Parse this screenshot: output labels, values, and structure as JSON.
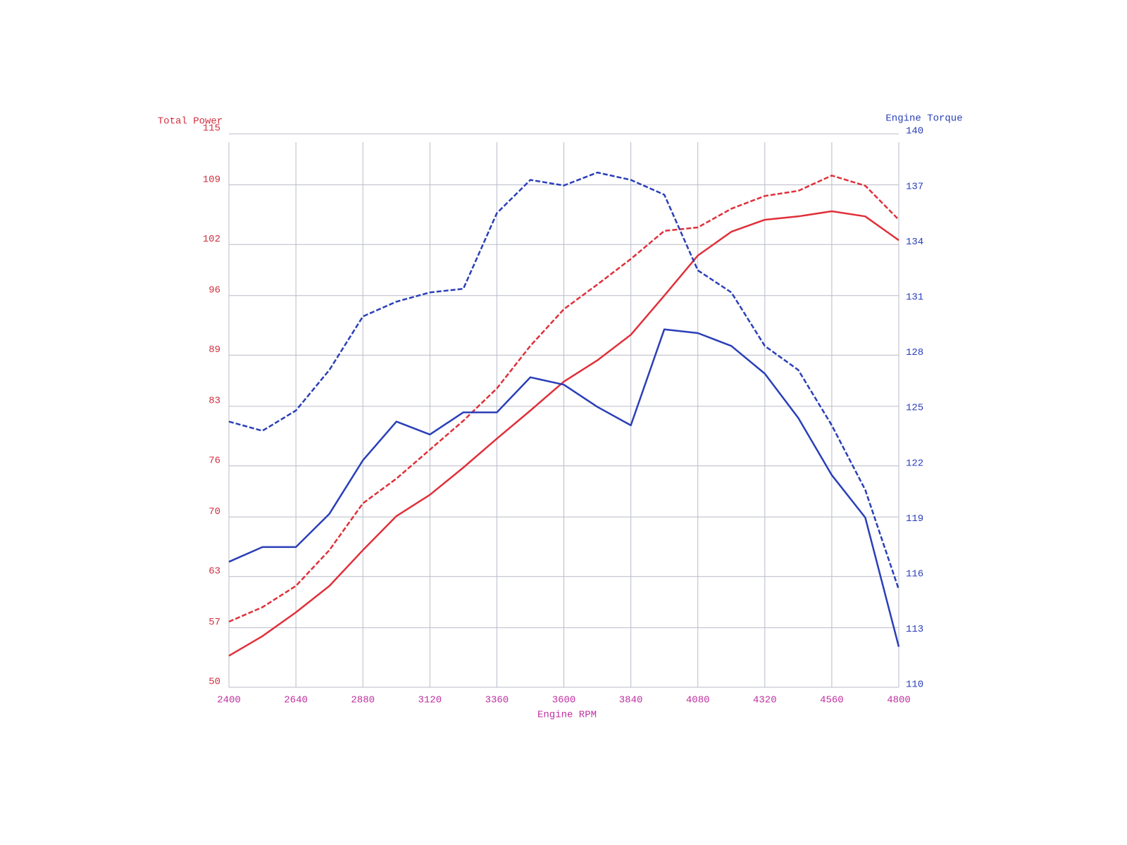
{
  "chart_data": {
    "type": "line",
    "x_label": "Engine RPM",
    "y_label": "Total Power",
    "y2_label": "Engine Torque",
    "x": [
      2400,
      2520,
      2640,
      2760,
      2880,
      3000,
      3120,
      3240,
      3360,
      3480,
      3600,
      3720,
      3840,
      3960,
      4080,
      4200,
      4320,
      4440,
      4560,
      4680,
      4800
    ],
    "xlim": [
      2400,
      4800
    ],
    "xticks": [
      2400,
      2640,
      2880,
      3120,
      3360,
      3600,
      3840,
      4080,
      4320,
      4560,
      4800
    ],
    "ylim": [
      50,
      115
    ],
    "yticks": [
      50,
      57,
      63,
      70,
      76,
      83,
      89,
      96,
      102,
      109,
      115
    ],
    "y2lim": [
      110,
      140
    ],
    "y2ticks": [
      110,
      113,
      116,
      119,
      122,
      125,
      128,
      131,
      134,
      137,
      140
    ],
    "grid": true,
    "series": [
      {
        "color": "#e0303a",
        "dash": false,
        "axis": "y",
        "values": [
          53.7,
          56.0,
          58.8,
          61.9,
          66.1,
          70.1,
          72.6,
          75.8,
          79.2,
          82.5,
          85.9,
          88.4,
          91.4,
          96.0,
          100.7,
          103.5,
          104.9,
          105.3,
          105.9,
          105.3,
          102.5
        ]
      },
      {
        "color": "#e0303a",
        "dash": true,
        "axis": "y",
        "values": [
          57.7,
          59.4,
          61.9,
          66.1,
          71.6,
          74.5,
          77.9,
          81.3,
          85.1,
          90.1,
          94.4,
          97.3,
          100.3,
          103.6,
          104.0,
          106.2,
          107.7,
          108.3,
          110.1,
          108.9,
          104.9
        ]
      },
      {
        "color": "#2a3fb8",
        "dash": false,
        "axis": "y2",
        "values": [
          116.8,
          117.6,
          117.6,
          119.4,
          122.3,
          124.4,
          123.7,
          124.9,
          124.9,
          126.8,
          126.4,
          125.2,
          124.2,
          129.4,
          129.2,
          128.5,
          127.0,
          124.6,
          121.5,
          119.2,
          112.2
        ]
      },
      {
        "color": "#2a3fb8",
        "dash": true,
        "axis": "y2",
        "values": [
          124.4,
          123.9,
          125.0,
          127.2,
          130.1,
          130.9,
          131.4,
          131.6,
          135.7,
          137.5,
          137.2,
          137.9,
          137.5,
          136.7,
          132.6,
          131.4,
          128.5,
          127.2,
          124.2,
          120.7,
          115.3
        ]
      }
    ]
  }
}
